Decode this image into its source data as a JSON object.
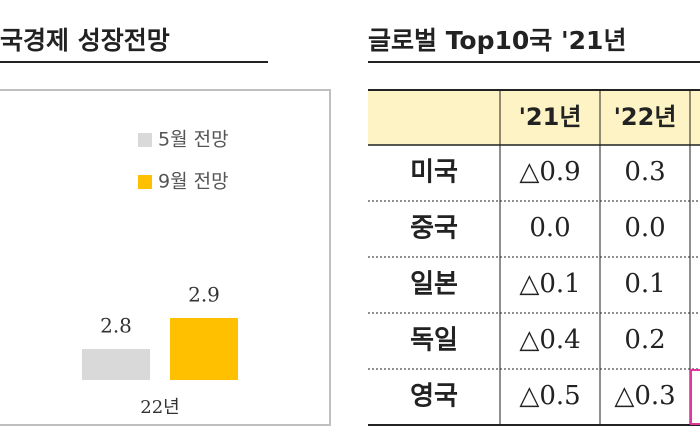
{
  "chart_data": {
    "type": "bar",
    "title": "국경제  성장전망",
    "categories": [
      "22년"
    ],
    "series": [
      {
        "name": "5월 전망",
        "color": "#d9d9d9",
        "values": [
          2.8
        ]
      },
      {
        "name": "9월 전망",
        "color": "#ffc000",
        "values": [
          2.9
        ]
      }
    ],
    "ylim": [
      2.7,
      3.5
    ]
  },
  "table": {
    "title": "글로벌 Top10국 '21년",
    "header": [
      "'21년",
      "'22년"
    ],
    "rows": [
      [
        "미국",
        "△0.9",
        "0.3"
      ],
      [
        "중국",
        "0.0",
        "0.0"
      ],
      [
        "일본",
        "△0.1",
        "0.1"
      ],
      [
        "독일",
        "△0.4",
        "0.2"
      ],
      [
        "영국",
        "△0.5",
        "△0.3"
      ]
    ]
  }
}
